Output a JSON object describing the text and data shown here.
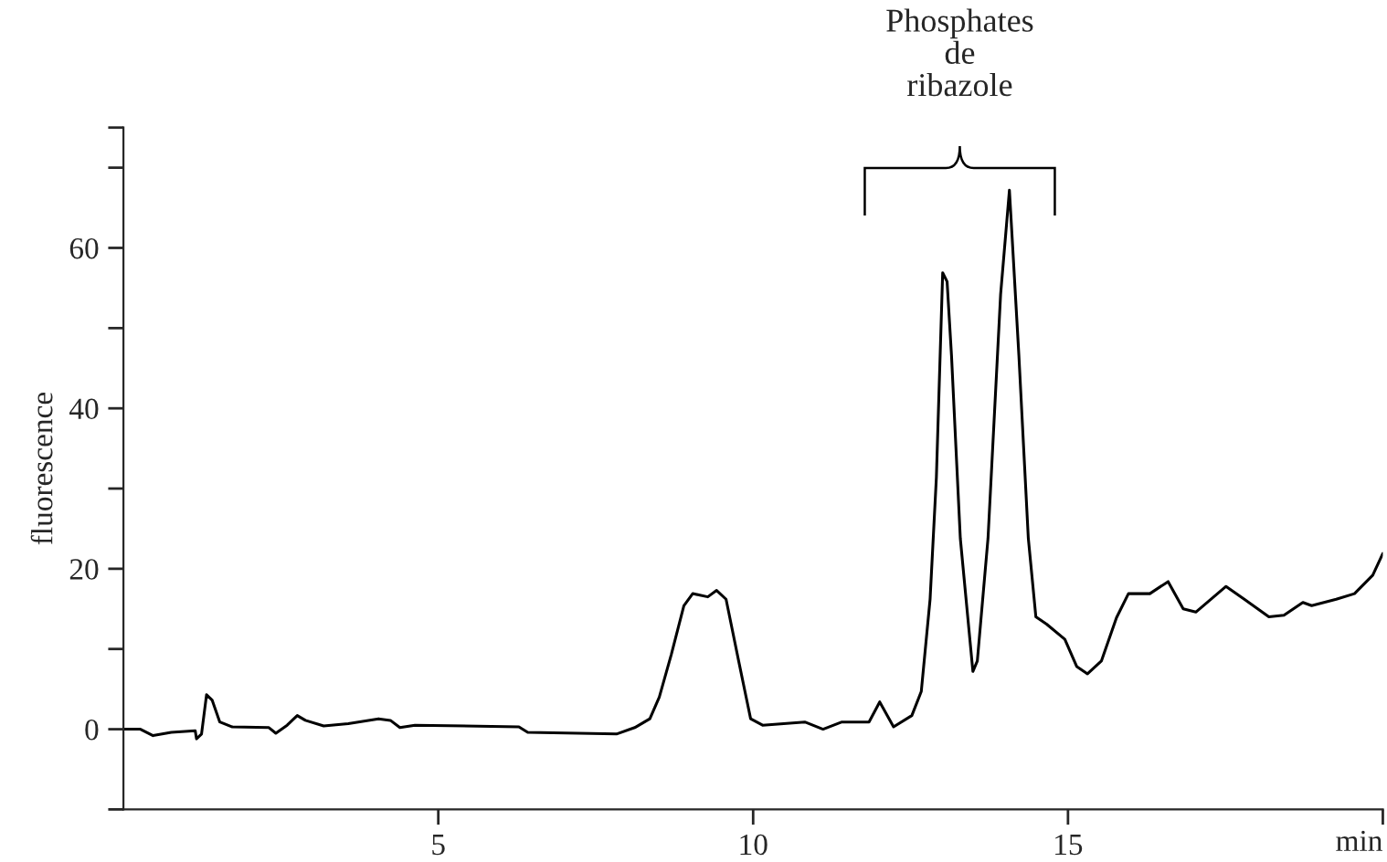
{
  "chart_data": {
    "type": "line",
    "xlabel": "min",
    "ylabel": "fluorescence",
    "annotations": [
      "Phosphates\nde\nribazole"
    ],
    "xlim": [
      0,
      20
    ],
    "ylim": [
      -10,
      75
    ],
    "xticks": [
      5,
      10,
      15,
      {
        "value": 20,
        "label": null
      }
    ],
    "yticks": [
      {
        "value": -10,
        "label": null
      },
      0,
      {
        "value": 10,
        "label": null
      },
      20,
      {
        "value": 30,
        "label": null
      },
      40,
      {
        "value": 50,
        "label": null
      },
      60,
      {
        "value": 70,
        "label": null
      },
      {
        "value": 75,
        "label": null
      }
    ],
    "grid": false,
    "legend": false,
    "marker": "none",
    "line_style": "solid",
    "series": [
      {
        "color": "#000000",
        "x": [
          0,
          0.27,
          0.47,
          0.76,
          1.14,
          1.16,
          1.24,
          1.32,
          1.41,
          1.53,
          1.72,
          2.31,
          2.42,
          2.6,
          2.76,
          2.89,
          3.18,
          3.57,
          4.05,
          4.24,
          4.39,
          4.63,
          6.28,
          6.42,
          7.83,
          8.12,
          8.36,
          8.51,
          8.7,
          8.9,
          9.04,
          9.28,
          9.42,
          9.57,
          9.77,
          9.96,
          10.15,
          10.82,
          11.11,
          11.41,
          11.84,
          12.01,
          12.23,
          12.52,
          12.67,
          12.81,
          12.91,
          13.01,
          13.08,
          13.15,
          13.29,
          13.49,
          13.56,
          13.73,
          13.93,
          14.07,
          14.22,
          14.37,
          14.49,
          14.66,
          14.95,
          15.14,
          15.31,
          15.53,
          15.77,
          15.96,
          16.3,
          16.59,
          16.83,
          17.03,
          17.51,
          17.8,
          18.19,
          18.43,
          18.73,
          18.87,
          19.26,
          19.55,
          19.84,
          20.0
        ],
        "values": [
          0,
          0,
          -0.8,
          -0.4,
          -0.2,
          -1.2,
          -0.6,
          4.3,
          3.6,
          0.9,
          0.3,
          0.2,
          -0.5,
          0.5,
          1.7,
          1.1,
          0.4,
          0.7,
          1.3,
          1.1,
          0.2,
          0.5,
          0.3,
          -0.4,
          -0.6,
          0.2,
          1.3,
          4.0,
          9.3,
          15.4,
          16.9,
          16.5,
          17.3,
          16.2,
          8.5,
          1.3,
          0.5,
          0.9,
          0,
          0.9,
          0.9,
          3.4,
          0.3,
          1.7,
          4.7,
          16.2,
          31.4,
          56.9,
          55.8,
          46.6,
          23.8,
          7.2,
          8.5,
          23.8,
          54.2,
          67.2,
          46.6,
          23.8,
          14.0,
          13.1,
          11.2,
          7.8,
          6.9,
          8.5,
          13.9,
          16.9,
          16.9,
          18.4,
          15.0,
          14.6,
          17.8,
          16.2,
          14.0,
          14.2,
          15.8,
          15.4,
          16.2,
          16.9,
          19.2,
          21.9
        ]
      }
    ]
  }
}
